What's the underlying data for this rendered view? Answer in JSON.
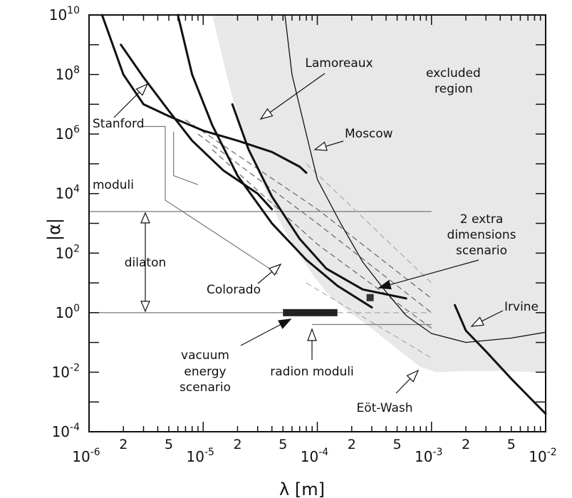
{
  "chart_data": {
    "type": "line",
    "title": "",
    "xlabel": "λ [m]",
    "ylabel": "|α|",
    "xscale": "log",
    "yscale": "log",
    "xlim": [
      1e-06,
      0.01
    ],
    "ylim": [
      0.0001,
      10000000000.0
    ],
    "x_ticks": [
      {
        "base": "10",
        "exp": "-6",
        "value": 1e-06
      },
      {
        "base": "10",
        "exp": "-5",
        "value": 1e-05
      },
      {
        "base": "10",
        "exp": "-4",
        "value": 0.0001
      },
      {
        "base": "10",
        "exp": "-3",
        "value": 0.001
      },
      {
        "base": "10",
        "exp": "-2",
        "value": 0.01
      }
    ],
    "x_minor_labels": [
      "2",
      "5"
    ],
    "y_ticks": [
      {
        "base": "10",
        "exp": "-4",
        "value": 0.0001
      },
      {
        "base": "10",
        "exp": "-2",
        "value": 0.01
      },
      {
        "base": "10",
        "exp": "0",
        "value": 1
      },
      {
        "base": "10",
        "exp": "2",
        "value": 100.0
      },
      {
        "base": "10",
        "exp": "4",
        "value": 10000.0
      },
      {
        "base": "10",
        "exp": "6",
        "value": 1000000.0
      },
      {
        "base": "10",
        "exp": "8",
        "value": 100000000.0
      },
      {
        "base": "10",
        "exp": "10",
        "value": 10000000000.0
      }
    ],
    "excluded_region_boundary": [
      [
        1.2e-05,
        10000000000.0
      ],
      [
        1.6e-05,
        100000000.0
      ],
      [
        2.2e-05,
        1000000.0
      ],
      [
        3.2e-05,
        30000.0
      ],
      [
        4.5e-05,
        1500.0
      ],
      [
        6.3e-05,
        150
      ],
      [
        9e-05,
        20
      ],
      [
        0.000125,
        4
      ],
      [
        0.00018,
        1.2
      ],
      [
        0.00027,
        0.4
      ],
      [
        0.0004,
        0.12
      ],
      [
        0.0006,
        0.035
      ],
      [
        0.0008,
        0.015
      ],
      [
        0.0011,
        0.01
      ],
      [
        0.002,
        0.011
      ],
      [
        0.004,
        0.011
      ],
      [
        0.006,
        0.0105
      ],
      [
        0.01,
        0.0095
      ]
    ],
    "series": [
      {
        "name": "Stanford",
        "style": "thick",
        "points": [
          [
            1.3e-06,
            10000000000.0
          ],
          [
            2e-06,
            100000000.0
          ],
          [
            3e-06,
            10000000.0
          ],
          [
            5e-06,
            4000000.0
          ],
          [
            1e-05,
            1300000.0
          ],
          [
            2e-05,
            600000.0
          ],
          [
            4e-05,
            250000.0
          ],
          [
            7e-05,
            80000.0
          ],
          [
            8e-05,
            50000.0
          ]
        ]
      },
      {
        "name": "Lamoreaux",
        "style": "thick",
        "points": [
          [
            1.9e-06,
            1000000000.0
          ],
          [
            3e-06,
            80000000.0
          ],
          [
            5e-06,
            6000000.0
          ],
          [
            8e-06,
            600000.0
          ],
          [
            1.5e-05,
            60000.0
          ],
          [
            3e-05,
            10000.0
          ],
          [
            4e-05,
            3000.0
          ]
        ]
      },
      {
        "name": "Colorado",
        "style": "thick",
        "points": [
          [
            1.8e-05,
            10000000.0
          ],
          [
            2.5e-05,
            300000.0
          ],
          [
            4e-05,
            8000.0
          ],
          [
            7e-05,
            300
          ],
          [
            0.00012,
            30
          ],
          [
            0.00025,
            6
          ],
          [
            0.0006,
            3
          ]
        ]
      },
      {
        "name": "Moscow",
        "style": "thick",
        "points": [
          [
            6e-06,
            10000000000.0
          ],
          [
            8e-06,
            100000000.0
          ],
          [
            1.2e-05,
            2000000.0
          ],
          [
            2e-05,
            40000.0
          ],
          [
            4e-05,
            1000.0
          ],
          [
            8e-05,
            60
          ],
          [
            0.00015,
            8
          ],
          [
            0.0003,
            1.5
          ]
        ]
      },
      {
        "name": "Eöt-Wash",
        "style": "thick",
        "points": [
          [
            0.0016,
            1.8
          ],
          [
            0.002,
            0.25
          ],
          [
            0.003,
            0.05
          ],
          [
            0.005,
            0.006
          ],
          [
            0.01,
            0.0004
          ]
        ]
      },
      {
        "name": "Irvine",
        "style": "thin",
        "points": [
          [
            5.2e-05,
            10000000000.0
          ],
          [
            6e-05,
            100000000.0
          ],
          [
            8e-05,
            1000000.0
          ],
          [
            0.0001,
            30000.0
          ],
          [
            0.00016,
            1000.0
          ],
          [
            0.00025,
            50
          ],
          [
            0.0004,
            5
          ],
          [
            0.0006,
            0.8
          ],
          [
            0.001,
            0.2
          ],
          [
            0.002,
            0.1
          ],
          [
            0.005,
            0.14
          ],
          [
            0.01,
            0.22
          ]
        ]
      }
    ],
    "scenario_lines": [
      {
        "style": "dashed",
        "color": "#666666",
        "points": [
          [
            7e-06,
            3000000.0
          ],
          [
            0.0001,
            3000.0
          ],
          [
            0.001,
            3
          ]
        ]
      },
      {
        "style": "dashed",
        "color": "#666666",
        "points": [
          [
            9e-06,
            1000000.0
          ],
          [
            0.0001,
            1000.0
          ],
          [
            0.001,
            1
          ]
        ]
      },
      {
        "style": "dashed",
        "color": "#666666",
        "points": [
          [
            1.2e-05,
            300000.0
          ],
          [
            0.0001,
            200.0
          ],
          [
            0.001,
            0.3
          ]
        ]
      },
      {
        "style": "dashed",
        "color": "#aaaaaa",
        "points": [
          [
            8e-05,
            100000.0
          ],
          [
            0.001,
            10
          ]
        ]
      },
      {
        "style": "dashed",
        "color": "#aaaaaa",
        "points": [
          [
            8e-05,
            10
          ],
          [
            0.001,
            0.03
          ]
        ]
      }
    ],
    "ranges": {
      "moduli": {
        "y": 2500.0,
        "x_end": 0.001
      },
      "dilaton": {
        "y_low": 1,
        "y_high": 2500.0
      },
      "radion_moduli": {
        "y": 0.4,
        "x_start": 9e-05,
        "x_end": 0.001
      },
      "vacuum_energy_scenario": {
        "x_start": 5e-05,
        "x_end": 0.00015,
        "y": 1
      }
    },
    "point": {
      "x": 0.00029,
      "y": 3.2
    },
    "annotations": {
      "lamoreaux": "Lamoreaux",
      "excluded": "excluded",
      "region": "region",
      "stanford": "Stanford",
      "moscow": "Moscow",
      "moduli": "moduli",
      "extra1": "2 extra",
      "extra2": "dimensions",
      "extra3": "scenario",
      "dilaton": "dilaton",
      "colorado": "Colorado",
      "irvine": "Irvine",
      "vac1": "vacuum",
      "vac2": "energy",
      "vac3": "scenario",
      "radion": "radion moduli",
      "eotwash": "Eöt-Wash"
    },
    "colors": {
      "excluded_fill": "#e8e8e8",
      "line": "#111111"
    }
  }
}
